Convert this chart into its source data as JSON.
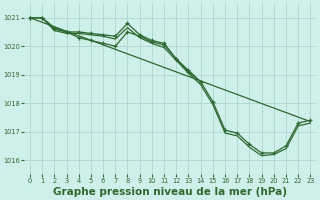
{
  "background_color": "#cff0ea",
  "grid_color": "#a8d8d0",
  "line_color": "#2d6a2d",
  "xlabel": "Graphe pression niveau de la mer (hPa)",
  "xlabel_fontsize": 7.5,
  "xlim": [
    -0.5,
    23.5
  ],
  "ylim": [
    1015.5,
    1021.5
  ],
  "yticks": [
    1016,
    1017,
    1018,
    1019,
    1020,
    1021
  ],
  "xticks": [
    0,
    1,
    2,
    3,
    4,
    5,
    6,
    7,
    8,
    9,
    10,
    11,
    12,
    13,
    14,
    15,
    16,
    17,
    18,
    19,
    20,
    21,
    22,
    23
  ],
  "curve1_x": [
    0,
    1,
    2,
    3,
    4,
    5,
    6,
    7,
    8,
    9,
    10,
    11,
    12,
    13,
    14
  ],
  "curve1_y": [
    1021.0,
    1021.0,
    1020.65,
    1020.5,
    1020.5,
    1020.45,
    1020.4,
    1020.35,
    1020.8,
    1020.4,
    1020.2,
    1020.1,
    1019.55,
    1019.15,
    1018.75
  ],
  "curve2_x": [
    0,
    1,
    2,
    3,
    4,
    5,
    6,
    7,
    8,
    9,
    10,
    11,
    12,
    13,
    14,
    15,
    16,
    17,
    18,
    19,
    20,
    21,
    22,
    23
  ],
  "curve2_y": [
    1021.0,
    1021.0,
    1020.6,
    1020.5,
    1020.3,
    1020.2,
    1020.1,
    1020.0,
    1020.5,
    1020.35,
    1020.15,
    1020.05,
    1019.55,
    1019.1,
    1018.75,
    1018.05,
    1017.05,
    1016.95,
    1016.55,
    1016.25,
    1016.25,
    1016.5,
    1017.3,
    1017.4
  ],
  "curve3_x": [
    0,
    23
  ],
  "curve3_y": [
    1021.0,
    1017.35
  ],
  "curve4_x": [
    0,
    1,
    2,
    3,
    4,
    5,
    6,
    7,
    8,
    9,
    10,
    11,
    12,
    13,
    14,
    15,
    16,
    17,
    18,
    19,
    20,
    21,
    22,
    23
  ],
  "curve4_y": [
    1021.0,
    1021.0,
    1020.55,
    1020.45,
    1020.45,
    1020.4,
    1020.35,
    1020.25,
    1020.65,
    1020.3,
    1020.1,
    1019.95,
    1019.5,
    1019.05,
    1018.65,
    1017.95,
    1016.95,
    1016.85,
    1016.45,
    1016.15,
    1016.2,
    1016.4,
    1017.2,
    1017.3
  ]
}
